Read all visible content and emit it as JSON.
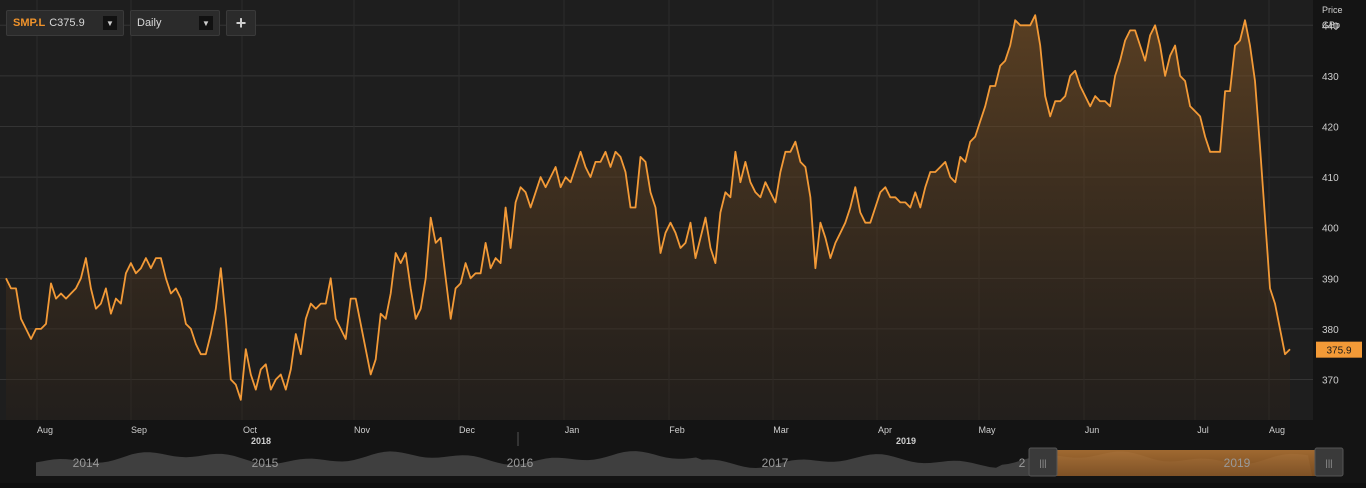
{
  "toolbar": {
    "symbol": "SMP.L",
    "close_label": "C",
    "close_value": "375.9",
    "interval": "Daily",
    "add_label": "+"
  },
  "axis": {
    "price_label": "Price",
    "unit_label": "GBp"
  },
  "colors": {
    "line": "#f39a37",
    "badge": "#f39a37",
    "plot_bg": "#1e1e1e",
    "grid": "#343434"
  },
  "navigator": {
    "years": [
      "2014",
      "2015",
      "2016",
      "2017",
      "2",
      "2019"
    ]
  },
  "chart_data": {
    "type": "area",
    "ylabel": "Price GBp",
    "ylim": [
      362,
      445
    ],
    "y_ticks": [
      370,
      380,
      390,
      400,
      410,
      420,
      430,
      440
    ],
    "last_value": 375.9,
    "x_month_labels": [
      "Aug",
      "Sep",
      "Oct",
      "Nov",
      "Dec",
      "Jan",
      "Feb",
      "Mar",
      "Apr",
      "May",
      "Jun",
      "Jul",
      "Aug"
    ],
    "x_year_labels": [
      "2018",
      "2019"
    ],
    "series": [
      {
        "values": [
          390,
          388,
          388,
          382,
          380,
          378,
          380,
          380,
          381,
          389,
          386,
          387,
          386,
          387,
          388,
          390,
          394,
          388,
          384,
          385,
          388,
          383,
          386,
          385,
          391,
          393,
          391,
          392,
          394,
          392,
          394,
          394,
          390,
          387,
          388,
          386,
          381,
          380,
          377,
          375,
          375,
          379,
          384,
          392,
          382,
          370,
          369,
          366,
          376,
          371,
          368,
          372,
          373,
          368,
          370,
          371,
          368,
          372,
          379,
          375,
          382,
          385,
          384,
          385,
          385,
          390,
          382,
          380,
          378,
          386,
          386,
          381,
          376,
          371,
          374,
          383,
          382,
          387,
          395,
          393,
          395,
          388,
          382,
          384,
          390,
          402,
          397,
          398,
          390,
          382,
          388,
          389,
          393,
          390,
          391,
          391,
          397,
          392,
          394,
          393,
          404,
          396,
          405,
          408,
          407,
          404,
          407,
          410,
          408,
          410,
          412,
          408,
          410,
          409,
          412,
          415,
          412,
          410,
          413,
          413,
          415,
          412,
          415,
          414,
          411,
          404,
          404,
          414,
          413,
          407,
          404,
          395,
          399,
          401,
          399,
          396,
          397,
          401,
          394,
          398,
          402,
          396,
          393,
          403,
          407,
          406,
          415,
          409,
          413,
          409,
          407,
          406,
          409,
          407,
          405,
          411,
          415,
          415,
          417,
          413,
          412,
          406,
          392,
          401,
          398,
          394,
          397,
          399,
          401,
          404,
          408,
          403,
          401,
          401,
          404,
          407,
          408,
          406,
          406,
          405,
          405,
          404,
          407,
          404,
          408,
          411,
          411,
          412,
          413,
          410,
          409,
          414,
          413,
          417,
          418,
          421,
          424,
          428,
          428,
          432,
          433,
          436,
          441,
          440,
          440,
          440,
          442,
          436,
          426,
          422,
          425,
          425,
          426,
          430,
          431,
          428,
          426,
          424,
          426,
          425,
          425,
          424,
          430,
          433,
          437,
          439,
          439,
          436,
          433,
          438,
          440,
          436,
          430,
          434,
          436,
          430,
          429,
          424,
          423,
          422,
          418,
          415,
          415,
          415,
          427,
          427,
          436,
          437,
          441,
          436,
          429,
          416,
          402,
          388,
          385,
          380,
          375,
          376
        ]
      }
    ]
  }
}
